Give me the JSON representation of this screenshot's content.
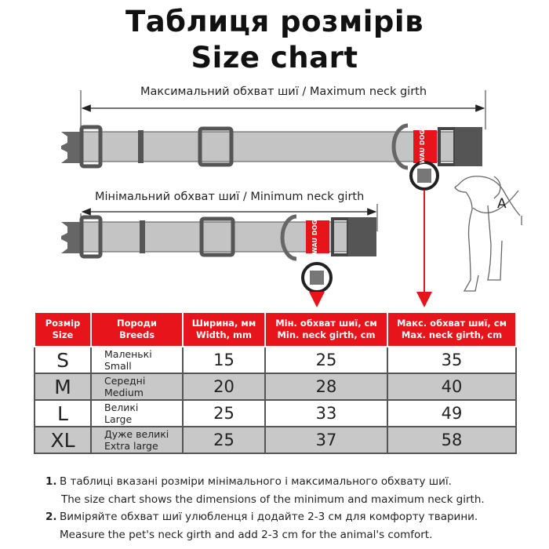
{
  "title": {
    "line1": "Таблиця розмірів",
    "line2": "Size chart"
  },
  "diagram": {
    "max_label": "Максимальний обхват шиї / Maximum neck girth",
    "min_label": "Мінімальний обхват шиї / Minimum neck girth",
    "brand_tag": "WAU DOG",
    "dog_label": "A",
    "accent_color": "#e8141b",
    "collar_color": "#c4c4c4"
  },
  "table": {
    "headers": [
      {
        "ua": "Розмір",
        "en": "Size"
      },
      {
        "ua": "Породи",
        "en": "Breeds"
      },
      {
        "ua": "Ширина, мм",
        "en": "Width, mm"
      },
      {
        "ua": "Мін. обхват шиї, см",
        "en": "Min. neck girth, cm"
      },
      {
        "ua": "Макс. обхват шиї, см",
        "en": "Max. neck girth, cm"
      }
    ],
    "rows": [
      {
        "size": "S",
        "breed_ua": "Маленькі",
        "breed_en": "Small",
        "width": "15",
        "min": "25",
        "max": "35"
      },
      {
        "size": "M",
        "breed_ua": "Середні",
        "breed_en": "Medium",
        "width": "20",
        "min": "28",
        "max": "40"
      },
      {
        "size": "L",
        "breed_ua": "Великі",
        "breed_en": "Large",
        "width": "25",
        "min": "33",
        "max": "49"
      },
      {
        "size": "XL",
        "breed_ua": "Дуже великі",
        "breed_en": "Extra large",
        "width": "25",
        "min": "37",
        "max": "58"
      }
    ]
  },
  "notes": [
    {
      "num": "1.",
      "ua": "В таблиці вказані розміри мінімального і максимального  обхвату шиї.",
      "en": "The size chart shows the dimensions of the minimum and maximum neck girth."
    },
    {
      "num": "2.",
      "ua": "Виміряйте обхват шиї улюбленця і додайте 2-3 см для комфорту тварини.",
      "en": "Measure the pet's neck girth and add 2-3 cm for the animal's comfort."
    }
  ]
}
